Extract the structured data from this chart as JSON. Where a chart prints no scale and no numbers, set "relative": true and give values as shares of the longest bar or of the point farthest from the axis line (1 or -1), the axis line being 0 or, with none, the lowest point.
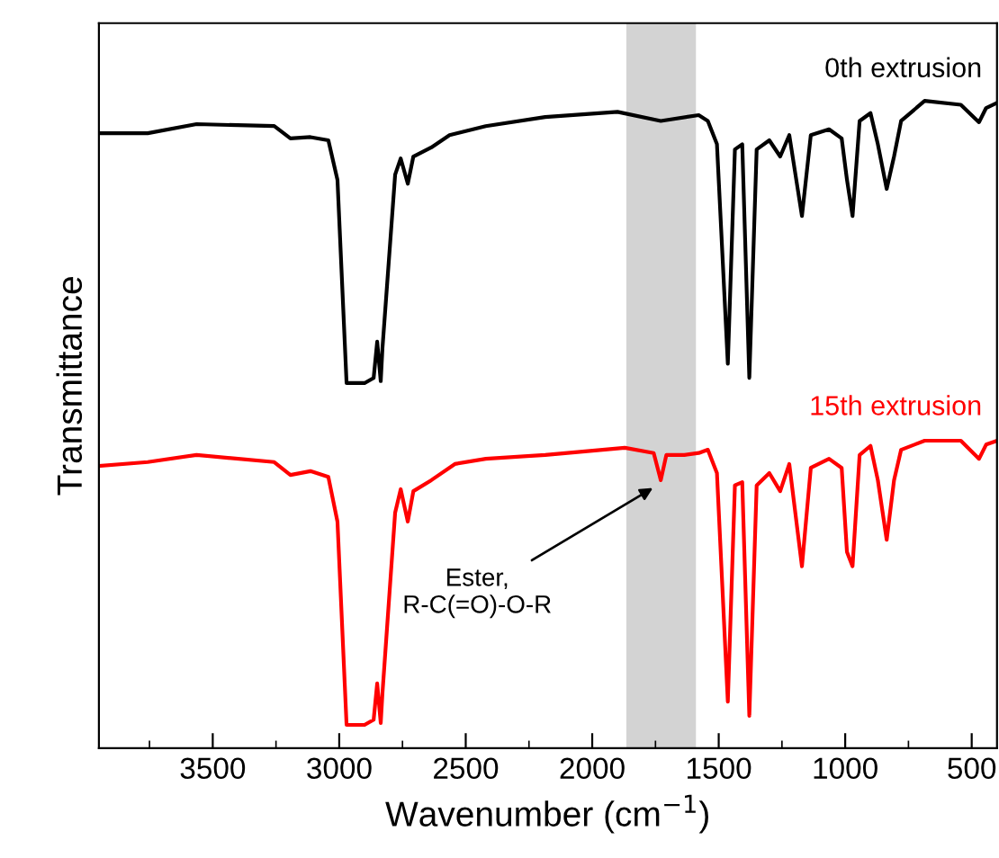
{
  "chart_data": {
    "type": "line",
    "relative": true,
    "xlabel": "Wavenumber (cm$^{−1}$)",
    "ylabel": "Transmittance",
    "xlim": [
      3950,
      400
    ],
    "xticks": [
      3500,
      3000,
      2500,
      2000,
      1500,
      1000,
      500
    ],
    "tick_labels": "x",
    "grid": false,
    "legend": false,
    "series": [
      {
        "name": "0th extrusion",
        "color": "#000000",
        "x": [
          3950,
          3757,
          3564,
          3257,
          3193,
          3114,
          3043,
          3007,
          2971,
          2900,
          2864,
          2850,
          2836,
          2829,
          2779,
          2757,
          2729,
          2707,
          2636,
          2564,
          2421,
          2186,
          1900,
          1729,
          1579,
          1543,
          1507,
          1464,
          1436,
          1407,
          1379,
          1350,
          1300,
          1257,
          1221,
          1171,
          1136,
          1064,
          1014,
          993,
          971,
          943,
          900,
          871,
          836,
          807,
          779,
          686,
          543,
          471,
          443,
          400
        ],
        "values": [
          0.95,
          0.95,
          0.964,
          0.961,
          0.942,
          0.944,
          0.939,
          0.878,
          0.564,
          0.564,
          0.572,
          0.628,
          0.567,
          0.619,
          0.886,
          0.911,
          0.872,
          0.914,
          0.928,
          0.947,
          0.961,
          0.975,
          0.983,
          0.969,
          0.978,
          0.969,
          0.933,
          0.594,
          0.925,
          0.933,
          0.572,
          0.925,
          0.939,
          0.914,
          0.947,
          0.822,
          0.947,
          0.956,
          0.942,
          0.878,
          0.822,
          0.969,
          0.981,
          0.933,
          0.864,
          0.914,
          0.969,
          1.0,
          0.994,
          0.967,
          0.989,
          0.997
        ]
      },
      {
        "name": "15th extrusion",
        "color": "#ff0000",
        "x": [
          3950,
          3757,
          3564,
          3257,
          3193,
          3114,
          3043,
          3007,
          2971,
          2900,
          2864,
          2850,
          2836,
          2829,
          2779,
          2757,
          2729,
          2707,
          2636,
          2543,
          2421,
          2186,
          1871,
          1757,
          1729,
          1707,
          1636,
          1579,
          1543,
          1507,
          1464,
          1436,
          1407,
          1379,
          1350,
          1300,
          1257,
          1221,
          1171,
          1136,
          1064,
          1014,
          993,
          971,
          943,
          900,
          871,
          836,
          807,
          779,
          686,
          543,
          471,
          443,
          400
        ],
        "values": [
          0.436,
          0.442,
          0.453,
          0.442,
          0.422,
          0.428,
          0.419,
          0.35,
          0.036,
          0.036,
          0.044,
          0.1,
          0.039,
          0.086,
          0.364,
          0.4,
          0.35,
          0.397,
          0.414,
          0.439,
          0.447,
          0.453,
          0.464,
          0.456,
          0.414,
          0.453,
          0.453,
          0.456,
          0.461,
          0.425,
          0.072,
          0.406,
          0.411,
          0.05,
          0.406,
          0.425,
          0.397,
          0.439,
          0.281,
          0.433,
          0.447,
          0.433,
          0.303,
          0.281,
          0.453,
          0.467,
          0.414,
          0.322,
          0.414,
          0.461,
          0.475,
          0.475,
          0.447,
          0.469,
          0.475
        ]
      }
    ],
    "bands": [
      {
        "axis": "x",
        "from": 1865,
        "to": 1590,
        "color": "#d3d3d3"
      }
    ],
    "annotations": [
      {
        "text": "Ester,\nR-C(=O)-O-R",
        "x": 1743,
        "y": 0.406
      }
    ]
  }
}
